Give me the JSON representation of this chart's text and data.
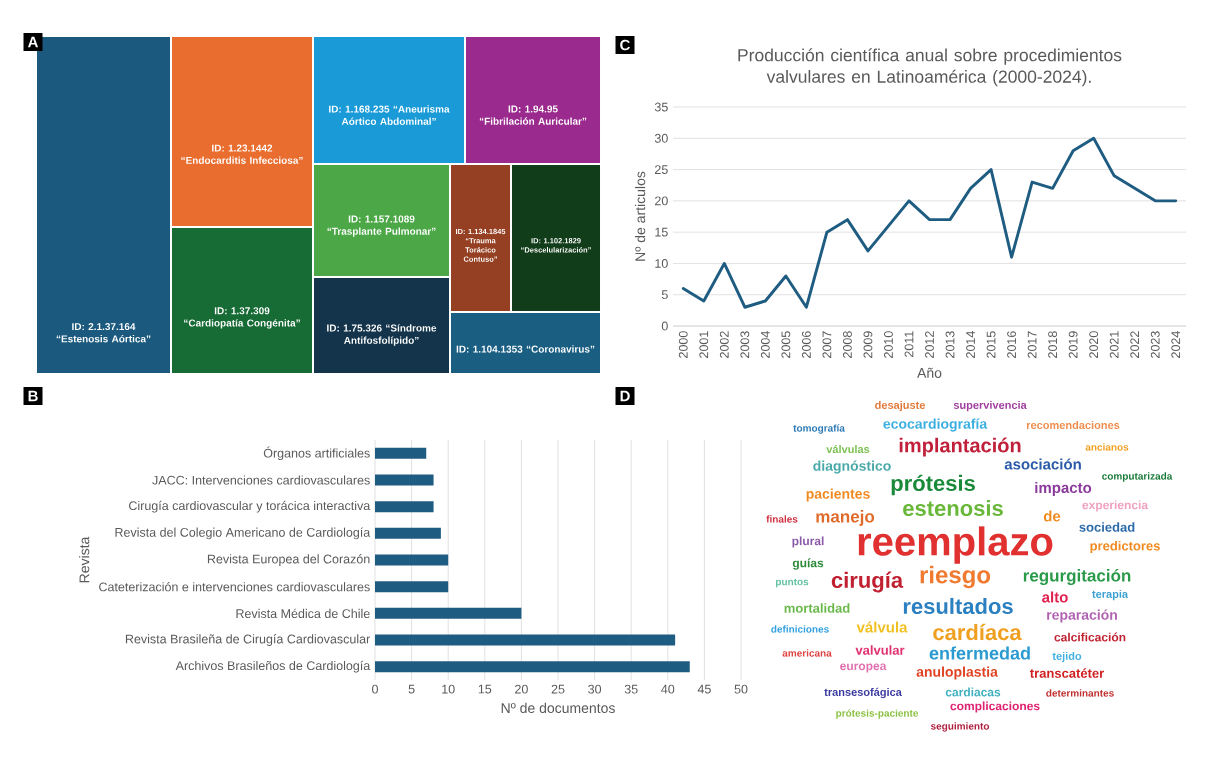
{
  "chart_data": [
    {
      "type": "other",
      "annotations": [
        "A"
      ],
      "categories": [
        "ID: 2.1.37.164 “Estenosis Aórtica”",
        "ID: 1.23.1442 “Endocarditis Infecciosa”",
        "ID: 1.37.309 “Cardiopatía Congénita”",
        "ID: 1.168.235 “Aneurisma Aórtico Abdominal”",
        "ID: 1.94.95 “Fibrilación Auricular”",
        "ID: 1.157.1089 “Trasplante Pulmonar”",
        "ID: 1.75.326 “Síndrome Antifosfolípido”",
        "ID: 1.134.1845 “Trauma Torácico Contuso”",
        "ID: 1.102.1829 “Descelularización”",
        "ID: 1.104.1353 “Coronavirus”"
      ],
      "colors": [
        "#1b5a7e",
        "#e96d2f",
        "#176b35",
        "#1a9bd7",
        "#9b2a8e",
        "#4ca847",
        "#13344a",
        "#954022",
        "#123d1a",
        "#1a5e82"
      ]
    },
    {
      "type": "line",
      "annotations": [
        "C"
      ],
      "title": "Producción científica anual sobre procedimientos valvulares en Latinoamérica (2000-2024).",
      "xlabel": "Año",
      "ylabel": "Nº de articulos",
      "categories": [
        "2000",
        "2001",
        "2002",
        "2003",
        "2004",
        "2005",
        "2006",
        "2007",
        "2008",
        "2009",
        "2010",
        "2011",
        "2012",
        "2013",
        "2014",
        "2015",
        "2016",
        "2017",
        "2018",
        "2019",
        "2020",
        "2021",
        "2022",
        "2023",
        "2024"
      ],
      "values": [
        6,
        4,
        10,
        3,
        4,
        8,
        3,
        15,
        17,
        12,
        16,
        20,
        17,
        17,
        22,
        25,
        11,
        23,
        22,
        28,
        30,
        24,
        22,
        20,
        20
      ],
      "color": "#1f5c82",
      "ylim": [
        0,
        35
      ],
      "yticks": [
        0,
        5,
        10,
        15,
        20,
        25,
        30,
        35
      ],
      "grid": "y"
    },
    {
      "type": "bar",
      "orientation": "horizontal",
      "annotations": [
        "B"
      ],
      "xlabel": "Nº de documentos",
      "ylabel": "Revista",
      "categories": [
        "Órganos artificiales",
        "JACC: Intervenciones cardiovasculares",
        "Cirugía cardiovascular y torácica interactiva",
        "Revista del Colegio Americano de Cardiología",
        "Revista Europea del Corazón",
        "Cateterización e intervenciones cardiovasculares",
        "Revista Médica de Chile",
        "Revista Brasileña de Cirugía Cardiovascular",
        "Archivos Brasileños de Cardiología"
      ],
      "values": [
        7,
        8,
        8,
        9,
        10,
        10,
        20,
        41,
        43
      ],
      "color": "#1f5c82",
      "xlim": [
        0,
        50
      ],
      "xticks": [
        0,
        5,
        10,
        15,
        20,
        25,
        30,
        35,
        40,
        45,
        50
      ],
      "grid": "x"
    },
    {
      "type": "other",
      "annotations": [
        "D"
      ],
      "categories": [
        "desajuste",
        "supervivencia",
        "tomografía",
        "ecocardiografía",
        "recomendaciones",
        "válvulas",
        "implantación",
        "ancianos",
        "diagnóstico",
        "asociación",
        "computarizada",
        "pacientes",
        "prótesis",
        "impacto",
        "finales",
        "manejo",
        "estenosis",
        "de",
        "experiencia",
        "sociedad",
        "plural",
        "reemplazo",
        "predictores",
        "guías",
        "puntos",
        "cirugía",
        "riesgo",
        "regurgitación",
        "alto",
        "terapia",
        "mortalidad",
        "resultados",
        "reparación",
        "definiciones",
        "válvula",
        "cardíaca",
        "calcificación",
        "americana",
        "valvular",
        "enfermedad",
        "tejido",
        "europea",
        "anuloplastia",
        "transcatéter",
        "transesofágica",
        "cardiacas",
        "determinantes",
        "complicaciones",
        "prótesis-paciente",
        "seguimiento"
      ],
      "colors": [
        "#e07a3a",
        "#a03c9e",
        "#2d7ab5",
        "#3aaee0",
        "#ef8c4c",
        "#7cc050",
        "#c0203a",
        "#f0a020",
        "#4aa8a8",
        "#2a5aa8",
        "#1a7a3a",
        "#f08a20",
        "#1a8a3a",
        "#8a3a9a",
        "#d03040",
        "#e06a2a",
        "#6ab83a",
        "#f08a20",
        "#f0a0c0",
        "#2a6aa8",
        "#8a5aa8",
        "#e03030",
        "#f08a20",
        "#2a8a3a",
        "#60c0a0",
        "#c02030",
        "#f07a30",
        "#2a9a4a",
        "#e02050",
        "#3aa0d0",
        "#6ab84a",
        "#2a80c0",
        "#b060b0",
        "#30a0e0",
        "#f0c020",
        "#f0a020",
        "#c02030",
        "#e04040",
        "#e03070",
        "#2a9ad0",
        "#40b0e0",
        "#e070b0",
        "#e04020",
        "#d02020",
        "#3a3aa0",
        "#40b0c0",
        "#c03030",
        "#e02070",
        "#8ac040",
        "#b02040"
      ]
    }
  ]
}
